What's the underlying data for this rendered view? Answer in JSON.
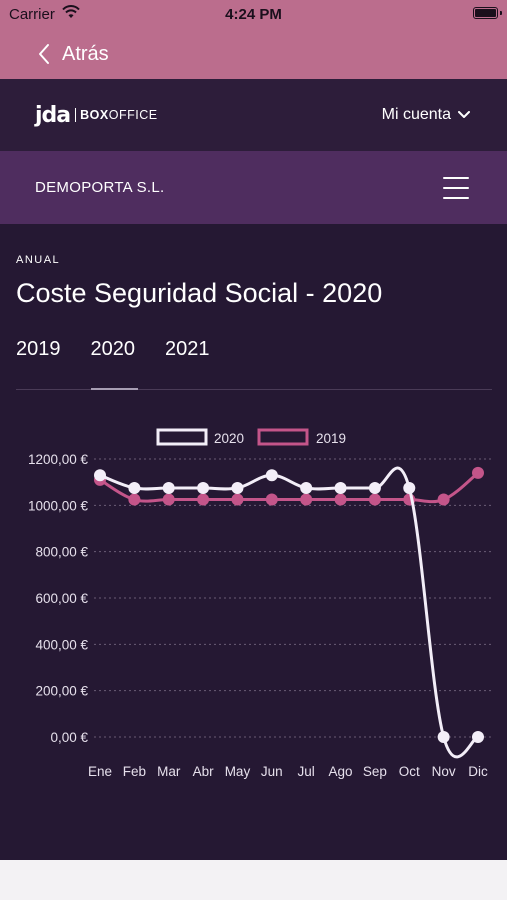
{
  "status_bar": {
    "carrier": "Carrier",
    "time": "4:24 PM"
  },
  "nav": {
    "back_label": "Atrás"
  },
  "header": {
    "logo_main": "jda",
    "logo_box": "BOX",
    "logo_office": "OFFICE",
    "account_label": "Mi cuenta"
  },
  "company": {
    "name": "DEMOPORTA S.L."
  },
  "page": {
    "kicker": "ANUAL",
    "title": "Coste Seguridad Social - 2020",
    "years": [
      "2019",
      "2020",
      "2021"
    ],
    "selected_year": "2020"
  },
  "colors": {
    "header_pink": "#bb6d8d",
    "dark_bg": "#251833",
    "topbar": "#2d1d3a",
    "company_bar": "#4f2d5f",
    "series_2020": "#f3eef8",
    "series_2019": "#c4558a"
  },
  "icons": {
    "back": "chevron-left-icon",
    "account": "chevron-down-icon",
    "menu": "hamburger-icon",
    "wifi": "wifi-icon",
    "battery": "battery-icon"
  },
  "chart_data": {
    "type": "line",
    "categories": [
      "Ene",
      "Feb",
      "Mar",
      "Abr",
      "May",
      "Jun",
      "Jul",
      "Ago",
      "Sep",
      "Oct",
      "Nov",
      "Dic"
    ],
    "series": [
      {
        "name": "2020",
        "color": "#f3eef8",
        "values": [
          1130,
          1075,
          1075,
          1075,
          1075,
          1130,
          1075,
          1075,
          1075,
          1075,
          0,
          0
        ]
      },
      {
        "name": "2019",
        "color": "#c4558a",
        "values": [
          1110,
          1025,
          1025,
          1025,
          1025,
          1025,
          1025,
          1025,
          1025,
          1025,
          1025,
          1140
        ]
      }
    ],
    "yticks": [
      "0,00 €",
      "200,00 €",
      "400,00 €",
      "600,00 €",
      "800,00 €",
      "1000,00 €",
      "1200,00 €"
    ],
    "ylim": [
      0,
      1200
    ],
    "grid": true,
    "legend": "top-center"
  }
}
